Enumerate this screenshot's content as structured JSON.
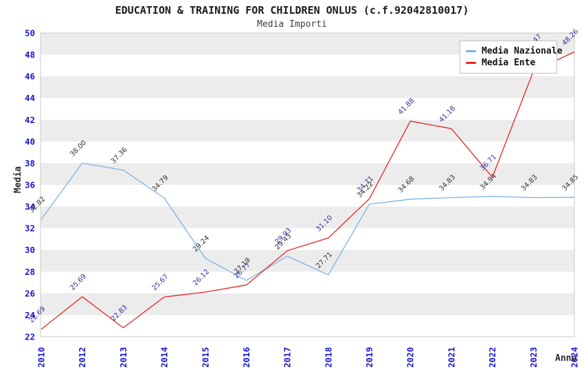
{
  "header": {
    "title": "EDUCATION & TRAINING FOR CHILDREN ONLUS (c.f.92042810017)",
    "subtitle": "Media Importi"
  },
  "axes": {
    "y_title": "Media",
    "x_title": "Anno"
  },
  "legend": {
    "position": "top-right",
    "items": [
      {
        "label": "Media Nazionale",
        "color": "#7db1e3"
      },
      {
        "label": "Media Ente",
        "color": "#e92222"
      }
    ]
  },
  "colors": {
    "plot_border": "#c9c9c9",
    "band_fill": "#ececec",
    "tick_label": "#1a17cf",
    "national_line": "#7db1e3",
    "ente_line": "#e92222",
    "national_point_label": "#333333",
    "ente_point_label": "#32329b"
  },
  "chart_data": {
    "type": "line",
    "title": "EDUCATION & TRAINING FOR CHILDREN ONLUS (c.f.92042810017)",
    "subtitle": "Media Importi",
    "xlabel": "Anno",
    "ylabel": "Media",
    "ylim": [
      22,
      50
    ],
    "ytick_step": 2,
    "grid": "alternating-horizontal-bands-every-2-units",
    "legend_position": "top-right",
    "categories": [
      "2010",
      "2012",
      "2013",
      "2014",
      "2015",
      "2016",
      "2017",
      "2018",
      "2019",
      "2020",
      "2021",
      "2022",
      "2023",
      "2024"
    ],
    "series": [
      {
        "name": "Media Nazionale",
        "color": "#7db1e3",
        "label_color": "#333333",
        "values": [
          32.82,
          38.0,
          37.36,
          34.79,
          29.24,
          27.19,
          29.43,
          27.71,
          34.22,
          34.68,
          34.83,
          34.94,
          34.83,
          34.85
        ],
        "labels": [
          "32.82",
          "38.00",
          "37.36",
          "34.79",
          "29.24",
          "27.19",
          "29.43",
          "27.71",
          "34.22",
          "34.68",
          "34.83",
          "34.94",
          "34.83",
          "34.85"
        ]
      },
      {
        "name": "Media Ente",
        "color": "#e92222",
        "label_color": "#32329b",
        "values": [
          22.69,
          25.69,
          22.83,
          25.67,
          26.12,
          26.77,
          29.93,
          31.1,
          34.71,
          41.88,
          41.18,
          36.71,
          46.47,
          48.26
        ],
        "labels": [
          "22.69",
          "25.69",
          "22.83",
          "25.67",
          "26.12",
          "26.77",
          "29.93",
          "31.10",
          "34.71",
          "41.88",
          "41.18",
          "36.71",
          "46.47",
          "48.26"
        ],
        "label_offsets": {
          "12": [
            -8,
            -30
          ]
        },
        "label_note": "2023 label mostly hidden behind legend; only the tip '47' is visible"
      }
    ]
  }
}
